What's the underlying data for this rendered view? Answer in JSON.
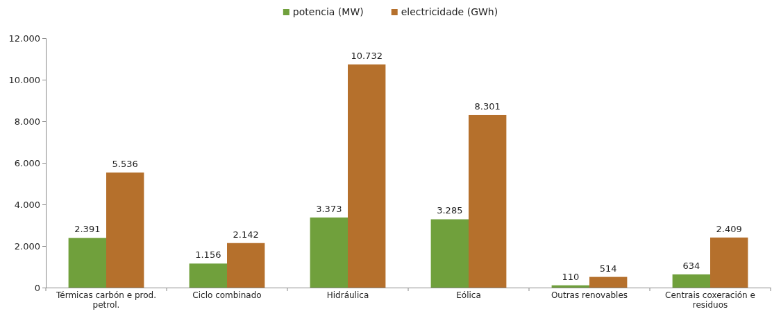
{
  "chart_data": {
    "type": "bar",
    "categories": [
      "Térmicas carbón e prod. petrol.",
      "Ciclo combinado",
      "Hidráulica",
      "Eólica",
      "Outras renovables",
      "Centrais coxeración e residuos"
    ],
    "series": [
      {
        "name": "potencia (MW)",
        "color": "#70a03c",
        "values": [
          2391,
          1156,
          3373,
          3285,
          110,
          634
        ],
        "value_labels": [
          "2.391",
          "1.156",
          "3.373",
          "3.285",
          "110",
          "634"
        ]
      },
      {
        "name": "electricidade (GWh)",
        "color": "#b5702c",
        "values": [
          5536,
          2142,
          10732,
          8301,
          514,
          2409
        ],
        "value_labels": [
          "5.536",
          "2.142",
          "10.732",
          "8.301",
          "514",
          "2.409"
        ]
      }
    ],
    "ylim": [
      0,
      12000
    ],
    "yticks": [
      {
        "value": 0,
        "label": "0"
      },
      {
        "value": 2000,
        "label": "2.000"
      },
      {
        "value": 4000,
        "label": "4.000"
      },
      {
        "value": 6000,
        "label": "6.000"
      },
      {
        "value": 8000,
        "label": "8.000"
      },
      {
        "value": 10000,
        "label": "10.000"
      },
      {
        "value": 12000,
        "label": "12.000"
      }
    ],
    "grid": false,
    "legend": "top"
  }
}
